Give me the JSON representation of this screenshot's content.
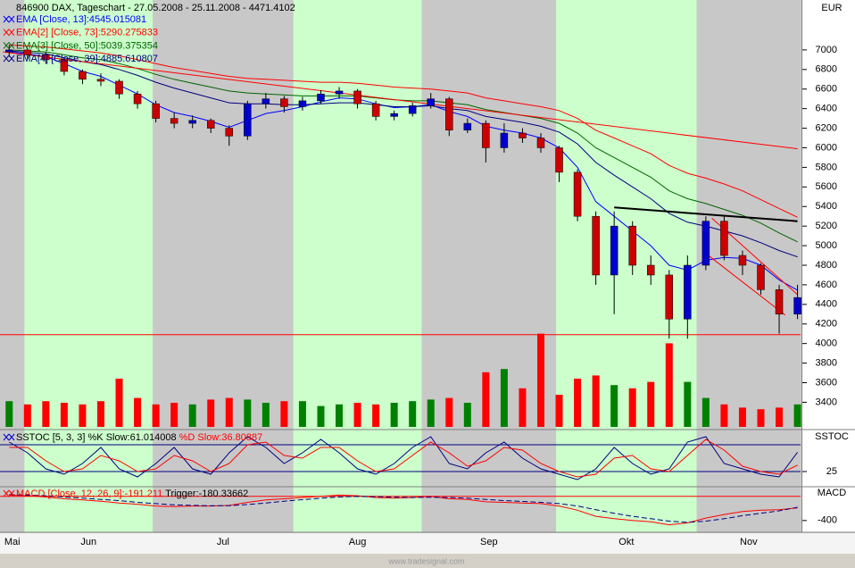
{
  "chart_data": {
    "type": "candlestick",
    "title": "846900 DAX, Tageschart - 27.05.2008 - 25.11.2008 - 4471.4102",
    "currency": "EUR",
    "watermark": "www.tradesignal.com",
    "xlim": [
      -0.5,
      130.5
    ],
    "month_bounds": [
      -0.5,
      3.5,
      24.5,
      47.5,
      68.5,
      90.5,
      113.5,
      130.5
    ],
    "band_colors": [
      "#c8c8c8",
      "#ccffcc"
    ],
    "xticks": [
      {
        "value": 1.5,
        "label": "Mai"
      },
      {
        "value": 14,
        "label": "Jun"
      },
      {
        "value": 36,
        "label": "Jul"
      },
      {
        "value": 58,
        "label": "Aug"
      },
      {
        "value": 79.5,
        "label": "Sep"
      },
      {
        "value": 102,
        "label": "Okt"
      },
      {
        "value": 122,
        "label": "Nov"
      }
    ],
    "ylim": [
      3130,
      7510
    ],
    "yticks": [
      3400,
      3600,
      3800,
      4000,
      4200,
      4400,
      4600,
      4800,
      5000,
      5200,
      5400,
      5600,
      5800,
      6000,
      6200,
      6400,
      6600,
      6800,
      7000
    ],
    "up_color": "#0000cc",
    "down_color": "#cc0000",
    "volume_up_color": "#008000",
    "volume_down_color": "#ff0000",
    "x": [
      1,
      4,
      7,
      10,
      13,
      16,
      19,
      22,
      25,
      28,
      31,
      34,
      37,
      40,
      43,
      46,
      49,
      52,
      55,
      58,
      61,
      64,
      67,
      70,
      73,
      76,
      79,
      82,
      85,
      88,
      91,
      94,
      97,
      100,
      103,
      106,
      109,
      112,
      115,
      118,
      121,
      124,
      127,
      130
    ],
    "open": [
      6980,
      7000,
      6950,
      6900,
      6780,
      6700,
      6680,
      6550,
      6450,
      6300,
      6250,
      6280,
      6200,
      6120,
      6450,
      6500,
      6420,
      6480,
      6550,
      6580,
      6450,
      6320,
      6350,
      6430,
      6500,
      6180,
      6250,
      6000,
      6150,
      6100,
      6000,
      5750,
      5300,
      4700,
      5200,
      4800,
      4700,
      4250,
      4800,
      5250,
      4900,
      4800,
      4550,
      4300
    ],
    "high": [
      7050,
      7020,
      6980,
      6920,
      6800,
      6760,
      6700,
      6580,
      6480,
      6360,
      6330,
      6300,
      6230,
      6480,
      6560,
      6530,
      6520,
      6590,
      6620,
      6600,
      6480,
      6380,
      6460,
      6560,
      6520,
      6300,
      6280,
      6250,
      6200,
      6150,
      6020,
      5780,
      5350,
      5350,
      5250,
      4900,
      4750,
      4900,
      5300,
      5300,
      4950,
      4820,
      4600,
      4600
    ],
    "low": [
      6930,
      6900,
      6860,
      6740,
      6650,
      6630,
      6500,
      6400,
      6260,
      6200,
      6200,
      6150,
      6020,
      6080,
      6400,
      6360,
      6380,
      6450,
      6500,
      6400,
      6280,
      6280,
      6320,
      6400,
      6120,
      6150,
      5850,
      5950,
      6050,
      5950,
      5650,
      5250,
      4600,
      4300,
      4700,
      4600,
      4050,
      4050,
      4750,
      4850,
      4700,
      4500,
      4100,
      4250
    ],
    "close": [
      7000,
      6950,
      6900,
      6780,
      6700,
      6680,
      6550,
      6450,
      6300,
      6250,
      6280,
      6200,
      6120,
      6450,
      6500,
      6420,
      6480,
      6550,
      6580,
      6450,
      6320,
      6350,
      6430,
      6500,
      6180,
      6250,
      6000,
      6150,
      6100,
      6000,
      5750,
      5300,
      4700,
      5200,
      4800,
      4700,
      4250,
      4800,
      5250,
      4900,
      4800,
      4550,
      4300,
      4470
    ],
    "volume": [
      80,
      70,
      80,
      75,
      70,
      80,
      150,
      90,
      70,
      75,
      70,
      85,
      90,
      85,
      75,
      80,
      80,
      65,
      70,
      75,
      70,
      75,
      80,
      85,
      90,
      75,
      170,
      180,
      120,
      290,
      100,
      150,
      160,
      130,
      120,
      140,
      260,
      140,
      90,
      70,
      60,
      55,
      60,
      70
    ],
    "series": [
      {
        "name": "EMA [Close, 13]:4545.015081",
        "color": "#0000ff",
        "values": [
          6980,
          6960,
          6930,
          6860,
          6780,
          6730,
          6640,
          6550,
          6440,
          6360,
          6320,
          6270,
          6210,
          6280,
          6350,
          6380,
          6420,
          6470,
          6510,
          6500,
          6450,
          6410,
          6420,
          6440,
          6370,
          6320,
          6220,
          6180,
          6150,
          6100,
          6000,
          5800,
          5450,
          5300,
          5150,
          5000,
          4800,
          4750,
          4850,
          4880,
          4870,
          4800,
          4650,
          4545
        ]
      },
      {
        "name": "EMA[2] [Close, 73]:5290.275833",
        "color": "#ff0000",
        "values": [
          7050,
          7040,
          7030,
          7010,
          6990,
          6970,
          6940,
          6900,
          6860,
          6820,
          6790,
          6760,
          6730,
          6710,
          6700,
          6690,
          6680,
          6670,
          6670,
          6660,
          6640,
          6620,
          6610,
          6600,
          6580,
          6560,
          6510,
          6480,
          6450,
          6420,
          6380,
          6300,
          6180,
          6100,
          6020,
          5940,
          5820,
          5740,
          5690,
          5630,
          5560,
          5470,
          5380,
          5290
        ]
      },
      {
        "name": "EMA[3] [Close, 50]:5039.375354",
        "color": "#006400",
        "values": [
          7000,
          6990,
          6980,
          6950,
          6920,
          6900,
          6860,
          6810,
          6750,
          6700,
          6660,
          6620,
          6580,
          6560,
          6550,
          6540,
          6530,
          6530,
          6530,
          6530,
          6510,
          6490,
          6480,
          6480,
          6460,
          6440,
          6390,
          6360,
          6330,
          6300,
          6250,
          6150,
          6000,
          5900,
          5800,
          5700,
          5560,
          5480,
          5430,
          5370,
          5310,
          5230,
          5130,
          5039
        ]
      },
      {
        "name": "EMA[4] [Close, 39]:4885.610807",
        "color": "#000080",
        "values": [
          6990,
          6975,
          6960,
          6920,
          6880,
          6850,
          6800,
          6740,
          6670,
          6610,
          6560,
          6510,
          6460,
          6450,
          6450,
          6440,
          6440,
          6450,
          6460,
          6460,
          6440,
          6420,
          6420,
          6430,
          6400,
          6380,
          6320,
          6290,
          6260,
          6220,
          6160,
          6040,
          5850,
          5720,
          5600,
          5480,
          5330,
          5240,
          5200,
          5150,
          5100,
          5030,
          4950,
          4886
        ]
      }
    ],
    "trendlines": [
      {
        "x": [
          0,
          130
        ],
        "values": [
          6980,
          5990
        ],
        "color": "#ff0000"
      },
      {
        "x": [
          100,
          130
        ],
        "values": [
          5390,
          5250
        ],
        "color": "#000000"
      },
      {
        "x": [
          116,
          130
        ],
        "values": [
          5280,
          4500
        ],
        "color": "#ff0000"
      },
      {
        "x": [
          115,
          128
        ],
        "values": [
          4920,
          4290
        ],
        "color": "#ff0000"
      },
      {
        "x": [
          -0.5,
          130.5
        ],
        "values": [
          4090,
          4090
        ],
        "color": "#ff0000"
      }
    ],
    "stochastic": {
      "type": "line",
      "label": "SSTOC",
      "title": "SSTOC [5, 3, 3]",
      "ylim": [
        0,
        100
      ],
      "yticks": [
        25
      ],
      "levels": [
        25,
        75
      ],
      "level_color": "#000080",
      "series": [
        {
          "name": "%K Slow:61.014008",
          "color": "#000080",
          "values": [
            80,
            60,
            30,
            20,
            40,
            70,
            30,
            15,
            40,
            70,
            30,
            20,
            60,
            90,
            70,
            40,
            60,
            85,
            60,
            30,
            20,
            40,
            70,
            90,
            40,
            30,
            60,
            80,
            50,
            30,
            20,
            10,
            30,
            70,
            40,
            20,
            30,
            80,
            90,
            40,
            30,
            20,
            15,
            61
          ]
        },
        {
          "name": "%D Slow:36.80887",
          "color": "#ff0000",
          "values": [
            70,
            70,
            45,
            25,
            30,
            55,
            45,
            25,
            30,
            55,
            45,
            25,
            40,
            75,
            80,
            55,
            50,
            70,
            70,
            45,
            25,
            30,
            55,
            80,
            60,
            35,
            45,
            70,
            65,
            40,
            25,
            15,
            20,
            50,
            55,
            30,
            25,
            55,
            85,
            65,
            35,
            25,
            20,
            37
          ]
        }
      ]
    },
    "macd": {
      "type": "line",
      "label": "MACD",
      "ylim": [
        -580,
        130
      ],
      "yticks": [
        -400
      ],
      "series": [
        {
          "name": "MACD [Close, 12, 26, 9]:-191.211",
          "color": "#ff0000",
          "values": [
            20,
            10,
            -10,
            -40,
            -60,
            -80,
            -110,
            -130,
            -160,
            -170,
            -160,
            -160,
            -150,
            -100,
            -60,
            -40,
            -20,
            0,
            20,
            10,
            -20,
            -30,
            -20,
            0,
            -40,
            -50,
            -90,
            -100,
            -110,
            -120,
            -160,
            -230,
            -330,
            -370,
            -400,
            -420,
            -470,
            -440,
            -360,
            -300,
            -250,
            -230,
            -220,
            -191
          ]
        },
        {
          "name": "Trigger:-180.33662",
          "color": "#000080",
          "dashed": true,
          "values": [
            30,
            20,
            10,
            -10,
            -30,
            -50,
            -70,
            -100,
            -120,
            -140,
            -150,
            -155,
            -155,
            -135,
            -110,
            -80,
            -55,
            -30,
            -10,
            0,
            -5,
            -15,
            -20,
            -15,
            -20,
            -30,
            -50,
            -70,
            -85,
            -100,
            -120,
            -160,
            -220,
            -280,
            -330,
            -370,
            -410,
            -430,
            -410,
            -370,
            -320,
            -280,
            -240,
            -180
          ]
        }
      ]
    }
  }
}
